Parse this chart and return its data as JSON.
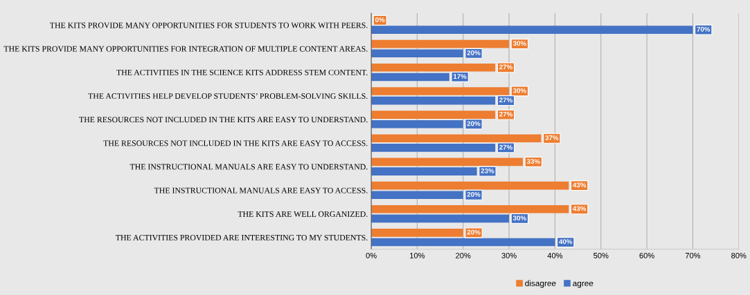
{
  "chart_data": {
    "type": "bar",
    "orientation": "horizontal",
    "categories": [
      "THE KITS PROVIDE MANY OPPORTUNITIES FOR STUDENTS TO WORK WITH PEERS.",
      "THE KITS PROVIDE MANY OPPORTUNITIES FOR INTEGRATION OF MULTIPLE CONTENT AREAS.",
      "THE ACTIVITIES IN THE SCIENCE KITS ADDRESS STEM CONTENT.",
      "THE ACTIVITIES HELP DEVELOP STUDENTS’ PROBLEM-SOLVING SKILLS.",
      "THE RESOURCES NOT INCLUDED IN THE KITS ARE EASY TO UNDERSTAND.",
      "THE RESOURCES NOT INCLUDED IN THE KITS ARE EASY TO ACCESS.",
      "THE INSTRUCTIONAL MANUALS ARE EASY TO UNDERSTAND.",
      "THE INSTRUCTIONAL MANUALS ARE EASY TO ACCESS.",
      "THE KITS ARE WELL ORGANIZED.",
      "THE ACTIVITIES PROVIDED ARE INTERESTING TO MY STUDENTS."
    ],
    "series": [
      {
        "name": "disagree",
        "color": "#ed7d31",
        "values": [
          0,
          30,
          27,
          30,
          27,
          37,
          33,
          43,
          43,
          20
        ],
        "value_labels": [
          "0%",
          "30%",
          "27%",
          "30%",
          "27%",
          "37%",
          "33%",
          "43%",
          "43%",
          "20%"
        ]
      },
      {
        "name": "agree",
        "color": "#4472c4",
        "values": [
          70,
          20,
          17,
          27,
          20,
          27,
          23,
          20,
          30,
          40
        ],
        "value_labels": [
          "70%",
          "20%",
          "17%",
          "27%",
          "20%",
          "27%",
          "23%",
          "20%",
          "30%",
          "40%"
        ]
      }
    ],
    "xlim": [
      0,
      80
    ],
    "xticks": [
      {
        "value": 0,
        "label": "0%"
      },
      {
        "value": 10,
        "label": "10%"
      },
      {
        "value": 20,
        "label": "20%"
      },
      {
        "value": 30,
        "label": "30%"
      },
      {
        "value": 40,
        "label": "40%"
      },
      {
        "value": 50,
        "label": "50%"
      },
      {
        "value": 60,
        "label": "60%"
      },
      {
        "value": 70,
        "label": "70%"
      },
      {
        "value": 80,
        "label": "80%"
      }
    ],
    "grid": "x",
    "legend": "bottom"
  }
}
